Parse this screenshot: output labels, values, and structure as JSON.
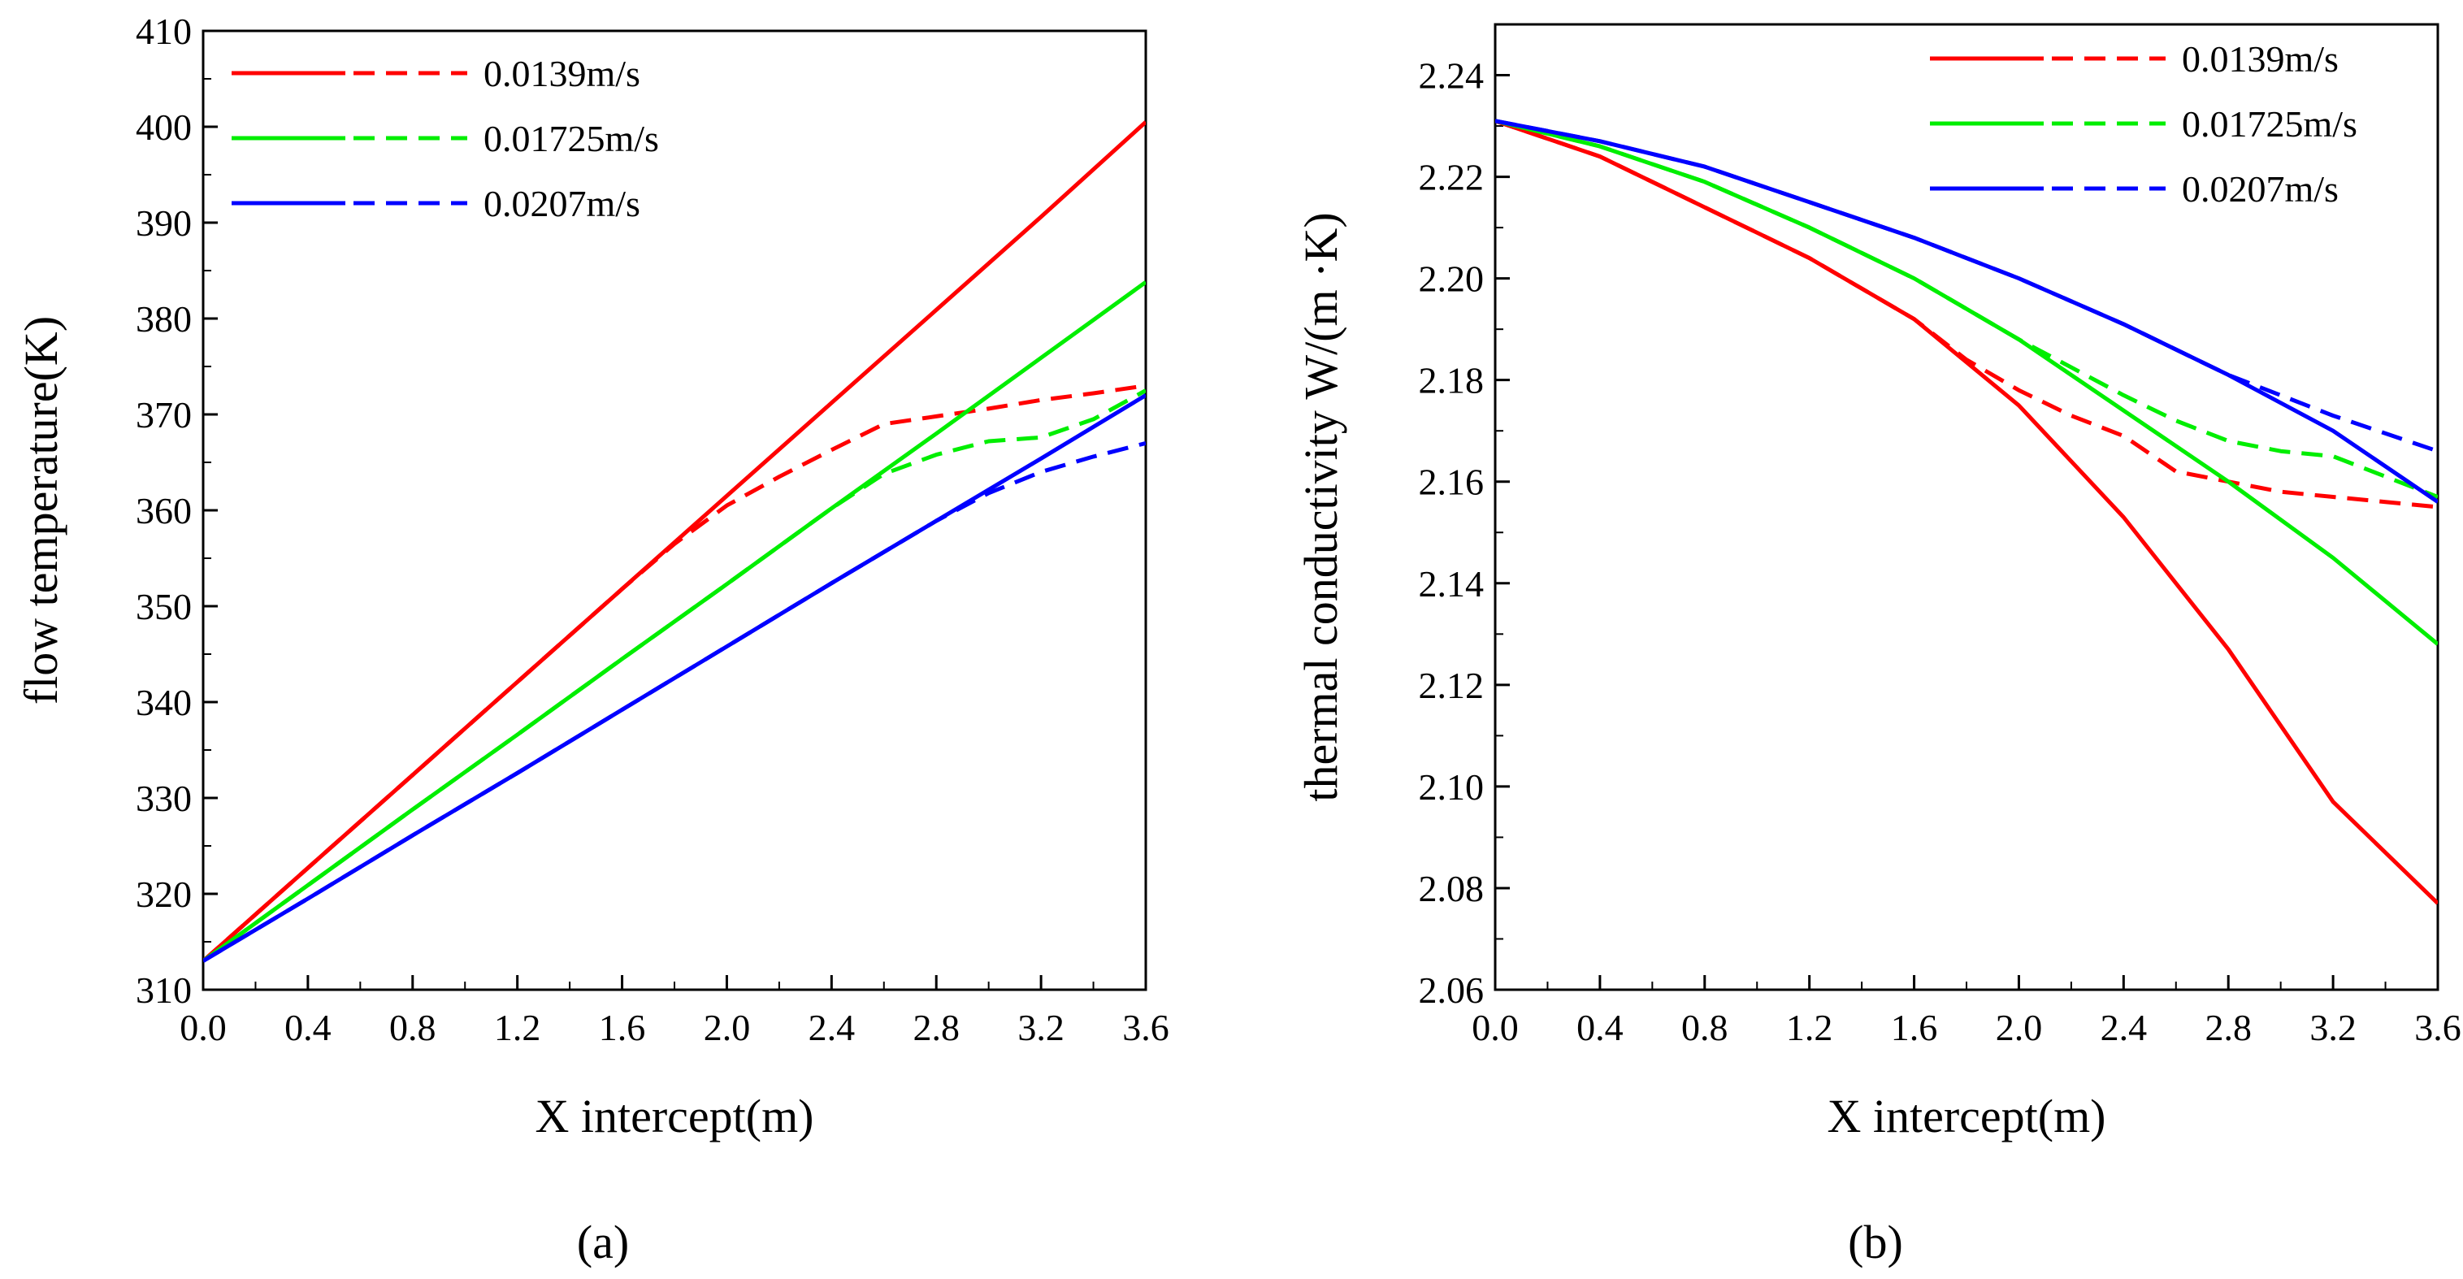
{
  "figure": {
    "panel_a_label": "(a)",
    "panel_b_label": "(b)"
  },
  "chart_data": [
    {
      "type": "line",
      "panel": "(a)",
      "title": "",
      "xlabel": "X intercept(m)",
      "ylabel": "flow temperature(K)",
      "xlim": [
        0.0,
        3.6
      ],
      "ylim": [
        310,
        410
      ],
      "xticks": [
        "0.0",
        "0.4",
        "0.8",
        "1.2",
        "1.6",
        "2.0",
        "2.4",
        "2.8",
        "3.2",
        "3.6"
      ],
      "yticks": [
        "310",
        "320",
        "330",
        "340",
        "350",
        "360",
        "370",
        "380",
        "390",
        "400",
        "410"
      ],
      "grid": false,
      "legend_position": "top-left",
      "series": [
        {
          "name": "0.0139m/s",
          "style": "solid",
          "color": "#ff0000",
          "x": [
            0.0,
            0.4,
            0.8,
            1.2,
            1.6,
            2.0,
            2.4,
            2.8,
            3.2,
            3.6
          ],
          "y": [
            313.0,
            322.7,
            332.4,
            342.1,
            351.8,
            361.5,
            371.2,
            380.9,
            390.6,
            400.5
          ]
        },
        {
          "name": "0.0139m/s",
          "style": "dashed",
          "color": "#ff0000",
          "x": [
            0.0,
            0.4,
            0.8,
            1.2,
            1.6,
            1.8,
            2.0,
            2.2,
            2.4,
            2.6,
            2.8,
            3.0,
            3.2,
            3.4,
            3.6
          ],
          "y": [
            313.0,
            322.7,
            332.4,
            342.1,
            351.8,
            356.5,
            360.5,
            363.5,
            366.3,
            369.0,
            369.8,
            370.6,
            371.5,
            372.2,
            373.0
          ]
        },
        {
          "name": "0.01725m/s",
          "style": "solid",
          "color": "#00ee00",
          "x": [
            0.0,
            0.4,
            0.8,
            1.2,
            1.6,
            2.0,
            2.4,
            2.8,
            3.2,
            3.6
          ],
          "y": [
            313.0,
            320.9,
            328.8,
            336.6,
            344.5,
            352.3,
            360.2,
            368.0,
            375.9,
            383.8
          ]
        },
        {
          "name": "0.01725m/s",
          "style": "dashed",
          "color": "#00ee00",
          "x": [
            0.0,
            0.4,
            0.8,
            1.2,
            1.6,
            2.0,
            2.4,
            2.6,
            2.8,
            3.0,
            3.2,
            3.4,
            3.6
          ],
          "y": [
            313.0,
            320.9,
            328.8,
            336.6,
            344.5,
            352.3,
            360.2,
            363.8,
            365.8,
            367.2,
            367.6,
            369.5,
            372.5
          ]
        },
        {
          "name": "0.0207m/s",
          "style": "solid",
          "color": "#0000ff",
          "x": [
            0.0,
            0.4,
            0.8,
            1.2,
            1.6,
            2.0,
            2.4,
            2.8,
            3.2,
            3.6
          ],
          "y": [
            313.0,
            319.5,
            326.1,
            332.6,
            339.2,
            345.8,
            352.4,
            358.9,
            365.4,
            372.0
          ]
        },
        {
          "name": "0.0207m/s",
          "style": "dashed",
          "color": "#0000ff",
          "x": [
            0.0,
            0.4,
            0.8,
            1.2,
            1.6,
            2.0,
            2.4,
            2.8,
            3.0,
            3.2,
            3.4,
            3.6
          ],
          "y": [
            313.0,
            319.5,
            326.1,
            332.6,
            339.2,
            345.8,
            352.4,
            358.9,
            361.8,
            364.0,
            365.6,
            367.0
          ]
        }
      ]
    },
    {
      "type": "line",
      "panel": "(b)",
      "title": "",
      "xlabel": "X intercept(m)",
      "ylabel": "thermal conductivity  W/(m ·K)",
      "xlim": [
        0.0,
        3.6
      ],
      "ylim": [
        2.06,
        2.25
      ],
      "xticks": [
        "0.0",
        "0.4",
        "0.8",
        "1.2",
        "1.6",
        "2.0",
        "2.4",
        "2.8",
        "3.2",
        "3.6"
      ],
      "yticks": [
        "2.06",
        "2.08",
        "2.10",
        "2.12",
        "2.14",
        "2.16",
        "2.18",
        "2.20",
        "2.22",
        "2.24"
      ],
      "grid": false,
      "legend_position": "top-right",
      "series": [
        {
          "name": "0.0139m/s",
          "style": "solid",
          "color": "#ff0000",
          "x": [
            0.0,
            0.4,
            0.8,
            1.2,
            1.6,
            2.0,
            2.4,
            2.8,
            3.2,
            3.6
          ],
          "y": [
            2.231,
            2.224,
            2.214,
            2.204,
            2.192,
            2.175,
            2.153,
            2.127,
            2.097,
            2.077
          ]
        },
        {
          "name": "0.0139m/s",
          "style": "dashed",
          "color": "#ff0000",
          "x": [
            0.0,
            0.4,
            0.8,
            1.2,
            1.6,
            1.8,
            2.0,
            2.2,
            2.4,
            2.6,
            2.8,
            3.0,
            3.2,
            3.4,
            3.6
          ],
          "y": [
            2.231,
            2.224,
            2.214,
            2.204,
            2.192,
            2.184,
            2.178,
            2.173,
            2.169,
            2.162,
            2.16,
            2.158,
            2.157,
            2.156,
            2.155
          ]
        },
        {
          "name": "0.01725m/s",
          "style": "solid",
          "color": "#00ee00",
          "x": [
            0.0,
            0.4,
            0.8,
            1.2,
            1.6,
            2.0,
            2.4,
            2.8,
            3.2,
            3.6
          ],
          "y": [
            2.231,
            2.226,
            2.219,
            2.21,
            2.2,
            2.188,
            2.174,
            2.16,
            2.145,
            2.128
          ]
        },
        {
          "name": "0.01725m/s",
          "style": "dashed",
          "color": "#00ee00",
          "x": [
            0.0,
            0.4,
            0.8,
            1.2,
            1.6,
            2.0,
            2.4,
            2.6,
            2.8,
            3.0,
            3.2,
            3.4,
            3.6
          ],
          "y": [
            2.231,
            2.226,
            2.219,
            2.21,
            2.2,
            2.188,
            2.177,
            2.172,
            2.168,
            2.166,
            2.165,
            2.161,
            2.157
          ]
        },
        {
          "name": "0.0207m/s",
          "style": "solid",
          "color": "#0000ff",
          "x": [
            0.0,
            0.4,
            0.8,
            1.2,
            1.6,
            2.0,
            2.4,
            2.8,
            3.2,
            3.6
          ],
          "y": [
            2.231,
            2.227,
            2.222,
            2.215,
            2.208,
            2.2,
            2.191,
            2.181,
            2.17,
            2.156
          ]
        },
        {
          "name": "0.0207m/s",
          "style": "dashed",
          "color": "#0000ff",
          "x": [
            0.0,
            0.4,
            0.8,
            1.2,
            1.6,
            2.0,
            2.4,
            2.8,
            3.2,
            3.6
          ],
          "y": [
            2.231,
            2.227,
            2.222,
            2.215,
            2.208,
            2.2,
            2.191,
            2.181,
            2.173,
            2.166
          ]
        }
      ]
    }
  ]
}
